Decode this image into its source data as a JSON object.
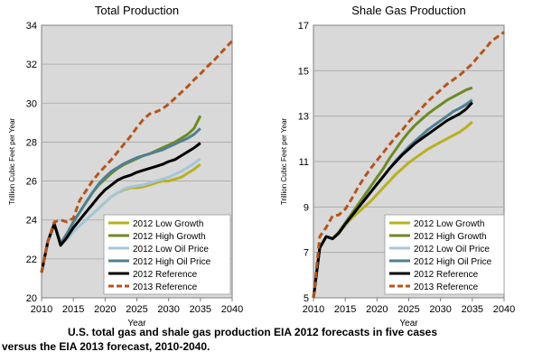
{
  "caption": {
    "line1": "U.S. total gas and shale gas production EIA 2012 forecasts in five cases",
    "line2": "versus the EIA 2013 forecast, 2010-2040."
  },
  "series_styles": {
    "2012 Low Growth": {
      "color": "#b9b020",
      "dash": "solid"
    },
    "2012 High Growth": {
      "color": "#6d8a24",
      "dash": "solid"
    },
    "2012 Low Oil Price": {
      "color": "#a4c6dc",
      "dash": "solid"
    },
    "2012 High Oil Price": {
      "color": "#4f7f92",
      "dash": "solid"
    },
    "2012 Reference": {
      "color": "#000000",
      "dash": "solid"
    },
    "2013 Reference": {
      "color": "#b5541a",
      "dash": "dashed"
    }
  },
  "chart_data": [
    {
      "type": "line",
      "title": "Total Production",
      "xlabel": "Year",
      "ylabel": "Trillion Cubic Feet per Year",
      "xlim": [
        2010,
        2040
      ],
      "ylim": [
        20,
        34
      ],
      "xticks": [
        2010,
        2015,
        2020,
        2025,
        2030,
        2035,
        2040
      ],
      "yticks": [
        20,
        22,
        24,
        26,
        28,
        30,
        32,
        34
      ],
      "legend": "bottom-right",
      "series": [
        {
          "name": "2012 Low Growth",
          "x": [
            2010,
            2011,
            2012,
            2013,
            2014,
            2015,
            2016,
            2017,
            2018,
            2019,
            2020,
            2021,
            2022,
            2023,
            2024,
            2025,
            2026,
            2027,
            2028,
            2029,
            2030,
            2031,
            2032,
            2033,
            2034,
            2035
          ],
          "values": [
            21.3,
            22.9,
            23.8,
            22.7,
            23.0,
            23.4,
            23.7,
            24.0,
            24.3,
            24.6,
            24.9,
            25.2,
            25.4,
            25.55,
            25.65,
            25.65,
            25.7,
            25.8,
            25.9,
            26.0,
            26.0,
            26.1,
            26.2,
            26.4,
            26.6,
            26.85
          ]
        },
        {
          "name": "2012 High Growth",
          "x": [
            2010,
            2011,
            2012,
            2013,
            2014,
            2015,
            2016,
            2017,
            2018,
            2019,
            2020,
            2021,
            2022,
            2023,
            2024,
            2025,
            2026,
            2027,
            2028,
            2029,
            2030,
            2031,
            2032,
            2033,
            2034,
            2035
          ],
          "values": [
            21.3,
            22.9,
            23.8,
            22.8,
            23.2,
            23.9,
            24.4,
            24.9,
            25.4,
            25.8,
            26.1,
            26.4,
            26.65,
            26.85,
            27.0,
            27.15,
            27.3,
            27.4,
            27.55,
            27.7,
            27.85,
            28.0,
            28.2,
            28.4,
            28.7,
            29.35
          ]
        },
        {
          "name": "2012 Low Oil Price",
          "x": [
            2010,
            2011,
            2012,
            2013,
            2014,
            2015,
            2016,
            2017,
            2018,
            2019,
            2020,
            2021,
            2022,
            2023,
            2024,
            2025,
            2026,
            2027,
            2028,
            2029,
            2030,
            2031,
            2032,
            2033,
            2034,
            2035
          ],
          "values": [
            21.3,
            22.9,
            23.8,
            22.7,
            23.0,
            23.4,
            23.7,
            24.0,
            24.3,
            24.6,
            24.9,
            25.2,
            25.4,
            25.6,
            25.7,
            25.75,
            25.8,
            25.9,
            26.0,
            26.1,
            26.2,
            26.35,
            26.5,
            26.7,
            26.9,
            27.15
          ]
        },
        {
          "name": "2012 High Oil Price",
          "x": [
            2010,
            2011,
            2012,
            2013,
            2014,
            2015,
            2016,
            2017,
            2018,
            2019,
            2020,
            2021,
            2022,
            2023,
            2024,
            2025,
            2026,
            2027,
            2028,
            2029,
            2030,
            2031,
            2032,
            2033,
            2034,
            2035
          ],
          "values": [
            21.3,
            22.9,
            23.8,
            22.8,
            23.3,
            23.9,
            24.4,
            24.9,
            25.4,
            25.85,
            26.2,
            26.5,
            26.7,
            26.9,
            27.05,
            27.2,
            27.3,
            27.4,
            27.5,
            27.6,
            27.75,
            27.9,
            28.05,
            28.2,
            28.4,
            28.7
          ]
        },
        {
          "name": "2012 Reference",
          "x": [
            2010,
            2011,
            2012,
            2013,
            2014,
            2015,
            2016,
            2017,
            2018,
            2019,
            2020,
            2021,
            2022,
            2023,
            2024,
            2025,
            2026,
            2027,
            2028,
            2029,
            2030,
            2031,
            2032,
            2033,
            2034,
            2035
          ],
          "values": [
            21.3,
            22.9,
            23.8,
            22.7,
            23.1,
            23.6,
            24.0,
            24.4,
            24.8,
            25.2,
            25.55,
            25.8,
            26.05,
            26.2,
            26.3,
            26.45,
            26.55,
            26.65,
            26.75,
            26.85,
            27.0,
            27.1,
            27.3,
            27.5,
            27.7,
            27.95
          ]
        },
        {
          "name": "2013 Reference",
          "x": [
            2010,
            2011,
            2012,
            2013,
            2014,
            2015,
            2016,
            2017,
            2018,
            2019,
            2020,
            2021,
            2022,
            2023,
            2024,
            2025,
            2026,
            2027,
            2028,
            2029,
            2030,
            2031,
            2032,
            2033,
            2034,
            2035,
            2036,
            2037,
            2038,
            2039,
            2040
          ],
          "values": [
            21.3,
            22.9,
            23.9,
            24.0,
            23.9,
            24.1,
            25.0,
            25.5,
            26.0,
            26.4,
            26.75,
            27.1,
            27.5,
            27.9,
            28.3,
            28.75,
            29.15,
            29.45,
            29.55,
            29.7,
            29.95,
            30.25,
            30.55,
            30.85,
            31.2,
            31.5,
            31.85,
            32.15,
            32.5,
            32.85,
            33.2
          ]
        }
      ]
    },
    {
      "type": "line",
      "title": "Shale Gas Production",
      "xlabel": "Year",
      "ylabel": "Trillion Cubic Feet per Year",
      "xlim": [
        2010,
        2040
      ],
      "ylim": [
        5,
        17
      ],
      "xticks": [
        2010,
        2015,
        2020,
        2025,
        2030,
        2035,
        2040
      ],
      "yticks": [
        5,
        7,
        9,
        11,
        13,
        15,
        17
      ],
      "legend": "bottom-right",
      "series": [
        {
          "name": "2012 Low Growth",
          "x": [
            2010,
            2011,
            2012,
            2013,
            2014,
            2015,
            2016,
            2017,
            2018,
            2019,
            2020,
            2021,
            2022,
            2023,
            2024,
            2025,
            2026,
            2027,
            2028,
            2029,
            2030,
            2031,
            2032,
            2033,
            2034,
            2035
          ],
          "values": [
            5.0,
            7.2,
            7.7,
            7.6,
            7.85,
            8.2,
            8.5,
            8.75,
            9.0,
            9.25,
            9.55,
            9.85,
            10.15,
            10.45,
            10.7,
            10.95,
            11.15,
            11.35,
            11.55,
            11.7,
            11.85,
            12.0,
            12.15,
            12.3,
            12.5,
            12.75
          ]
        },
        {
          "name": "2012 High Growth",
          "x": [
            2010,
            2011,
            2012,
            2013,
            2014,
            2015,
            2016,
            2017,
            2018,
            2019,
            2020,
            2021,
            2022,
            2023,
            2024,
            2025,
            2026,
            2027,
            2028,
            2029,
            2030,
            2031,
            2032,
            2033,
            2034,
            2035
          ],
          "values": [
            5.0,
            7.2,
            7.7,
            7.6,
            7.9,
            8.3,
            8.7,
            9.1,
            9.5,
            9.9,
            10.3,
            10.7,
            11.15,
            11.55,
            11.95,
            12.3,
            12.6,
            12.85,
            13.1,
            13.3,
            13.5,
            13.7,
            13.85,
            14.0,
            14.15,
            14.25
          ]
        },
        {
          "name": "2012 Low Oil Price",
          "x": [
            2010,
            2011,
            2012,
            2013,
            2014,
            2015,
            2016,
            2017,
            2018,
            2019,
            2020,
            2021,
            2022,
            2023,
            2024,
            2025,
            2026,
            2027,
            2028,
            2029,
            2030,
            2031,
            2032,
            2033,
            2034,
            2035
          ],
          "values": [
            5.0,
            7.2,
            7.7,
            7.6,
            7.85,
            8.25,
            8.6,
            8.95,
            9.3,
            9.65,
            10.0,
            10.35,
            10.7,
            11.05,
            11.35,
            11.65,
            11.9,
            12.15,
            12.4,
            12.6,
            12.8,
            13.0,
            13.2,
            13.35,
            13.55,
            13.75
          ]
        },
        {
          "name": "2012 High Oil Price",
          "x": [
            2010,
            2011,
            2012,
            2013,
            2014,
            2015,
            2016,
            2017,
            2018,
            2019,
            2020,
            2021,
            2022,
            2023,
            2024,
            2025,
            2026,
            2027,
            2028,
            2029,
            2030,
            2031,
            2032,
            2033,
            2034,
            2035
          ],
          "values": [
            5.0,
            7.2,
            7.7,
            7.6,
            7.85,
            8.25,
            8.6,
            8.95,
            9.3,
            9.65,
            10.0,
            10.35,
            10.7,
            11.05,
            11.35,
            11.65,
            11.9,
            12.15,
            12.4,
            12.6,
            12.8,
            13.0,
            13.2,
            13.35,
            13.5,
            13.7
          ]
        },
        {
          "name": "2012 Reference",
          "x": [
            2010,
            2011,
            2012,
            2013,
            2014,
            2015,
            2016,
            2017,
            2018,
            2019,
            2020,
            2021,
            2022,
            2023,
            2024,
            2025,
            2026,
            2027,
            2028,
            2029,
            2030,
            2031,
            2032,
            2033,
            2034,
            2035
          ],
          "values": [
            5.0,
            7.2,
            7.7,
            7.6,
            7.85,
            8.25,
            8.6,
            8.95,
            9.3,
            9.65,
            10.0,
            10.35,
            10.7,
            11.0,
            11.3,
            11.55,
            11.8,
            12.0,
            12.2,
            12.4,
            12.6,
            12.8,
            12.95,
            13.1,
            13.3,
            13.6
          ]
        },
        {
          "name": "2013 Reference",
          "x": [
            2010,
            2011,
            2012,
            2013,
            2014,
            2015,
            2016,
            2017,
            2018,
            2019,
            2020,
            2021,
            2022,
            2023,
            2024,
            2025,
            2026,
            2027,
            2028,
            2029,
            2030,
            2031,
            2032,
            2033,
            2034,
            2035,
            2036,
            2037,
            2038,
            2039,
            2040
          ],
          "values": [
            5.0,
            7.7,
            8.1,
            8.6,
            8.65,
            8.9,
            9.35,
            9.85,
            10.3,
            10.7,
            11.05,
            11.4,
            11.75,
            12.1,
            12.4,
            12.75,
            13.05,
            13.35,
            13.65,
            13.9,
            14.15,
            14.4,
            14.6,
            14.8,
            15.05,
            15.3,
            15.65,
            15.95,
            16.3,
            16.5,
            16.7
          ]
        }
      ]
    }
  ]
}
